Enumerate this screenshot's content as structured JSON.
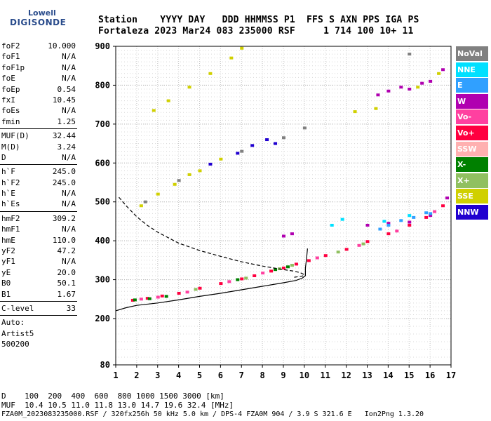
{
  "logo": {
    "line1": "Lowell",
    "line2": "DIGISONDE"
  },
  "header": {
    "line1": "Station    YYYY DAY   DDD HHMMSS P1  FFS S AXN PPS IGA PS",
    "line2": "Fortaleza 2023 Mar24 083 235000 RSF     1 714 100 10+ 11"
  },
  "sidebar": {
    "group1": [
      {
        "label": "foF2",
        "value": "10.000"
      },
      {
        "label": "foF1",
        "value": "N/A"
      },
      {
        "label": "foF1p",
        "value": "N/A"
      },
      {
        "label": "foE",
        "value": "N/A"
      },
      {
        "label": "foEp",
        "value": "0.54"
      },
      {
        "label": "fxI",
        "value": "10.45"
      },
      {
        "label": "foEs",
        "value": "N/A"
      },
      {
        "label": "fmin",
        "value": "1.25"
      }
    ],
    "group2": [
      {
        "label": "MUF(D)",
        "value": "32.44"
      },
      {
        "label": "M(D)",
        "value": "3.24"
      },
      {
        "label": "D",
        "value": "N/A"
      }
    ],
    "group3": [
      {
        "label": "h`F",
        "value": "245.0"
      },
      {
        "label": "h`F2",
        "value": "245.0"
      },
      {
        "label": "h`E",
        "value": "N/A"
      },
      {
        "label": "h`Es",
        "value": "N/A"
      }
    ],
    "group4": [
      {
        "label": "hmF2",
        "value": "309.2"
      },
      {
        "label": "hmF1",
        "value": "N/A"
      },
      {
        "label": "hmE",
        "value": "110.0"
      },
      {
        "label": "yF2",
        "value": "47.2"
      },
      {
        "label": "yF1",
        "value": "N/A"
      },
      {
        "label": "yE",
        "value": "20.0"
      },
      {
        "label": "B0",
        "value": "50.1"
      },
      {
        "label": "B1",
        "value": "1.67"
      }
    ],
    "group5": [
      {
        "label": "C-level",
        "value": "33"
      }
    ],
    "auto_lines": [
      "Auto:",
      "Artist5",
      "500200"
    ]
  },
  "legend": [
    {
      "label": "NoVal",
      "color": "#808080"
    },
    {
      "label": "NNE",
      "color": "#00e0ff"
    },
    {
      "label": "E",
      "color": "#30a0ff"
    },
    {
      "label": "W",
      "color": "#b000b0"
    },
    {
      "label": "Vo-",
      "color": "#ff40a0"
    },
    {
      "label": "Vo+",
      "color": "#ff0040"
    },
    {
      "label": "SSW",
      "color": "#ffb0b0"
    },
    {
      "label": "X-",
      "color": "#008000"
    },
    {
      "label": "X+",
      "color": "#90c060"
    },
    {
      "label": "SSE",
      "color": "#d0d000"
    },
    {
      "label": "NNW",
      "color": "#2000d0"
    }
  ],
  "chart_data": {
    "type": "scatter",
    "xlim": [
      1,
      17
    ],
    "ylim": [
      80,
      900
    ],
    "x_ticks": [
      1,
      2,
      3,
      4,
      5,
      6,
      7,
      8,
      9,
      10,
      11,
      12,
      13,
      14,
      15,
      16,
      17
    ],
    "y_ticks": [
      80,
      200,
      300,
      400,
      500,
      600,
      700,
      800,
      900
    ],
    "grid": true,
    "legend_placement": "right",
    "series": [
      {
        "color_key": "Vo+",
        "points": [
          [
            1.8,
            247
          ],
          [
            2.5,
            252
          ],
          [
            3.2,
            258
          ],
          [
            4,
            265
          ],
          [
            5,
            278
          ],
          [
            6,
            290
          ],
          [
            7,
            302
          ],
          [
            7.6,
            310
          ],
          [
            8.4,
            322
          ],
          [
            9,
            330
          ],
          [
            9.6,
            340
          ],
          [
            10.2,
            349
          ],
          [
            11,
            362
          ],
          [
            12,
            378
          ],
          [
            13,
            398
          ],
          [
            14,
            418
          ],
          [
            15,
            440
          ],
          [
            15.8,
            460
          ],
          [
            16.6,
            490
          ]
        ]
      },
      {
        "color_key": "Vo-",
        "points": [
          [
            2.2,
            250
          ],
          [
            3,
            255
          ],
          [
            4.4,
            268
          ],
          [
            6.4,
            295
          ],
          [
            8,
            317
          ],
          [
            10.6,
            356
          ],
          [
            12.6,
            388
          ],
          [
            14.4,
            425
          ],
          [
            16.2,
            475
          ]
        ]
      },
      {
        "color_key": "X-",
        "points": [
          [
            1.9,
            248
          ],
          [
            2.6,
            251
          ],
          [
            3.4,
            257
          ],
          [
            6.8,
            300
          ],
          [
            8.6,
            326
          ],
          [
            9.2,
            333
          ]
        ]
      },
      {
        "color_key": "X+",
        "points": [
          [
            4.8,
            275
          ],
          [
            7.2,
            304
          ],
          [
            8.8,
            328
          ],
          [
            9.4,
            337
          ],
          [
            11.6,
            371
          ],
          [
            12.8,
            392
          ]
        ]
      },
      {
        "color_key": "W",
        "points": [
          [
            9,
            412
          ],
          [
            9.4,
            418
          ],
          [
            13,
            440
          ],
          [
            14,
            445
          ],
          [
            15,
            448
          ],
          [
            16,
            465
          ],
          [
            16.8,
            510
          ],
          [
            13.5,
            775
          ],
          [
            14,
            785
          ],
          [
            14.6,
            795
          ],
          [
            15,
            790
          ],
          [
            15.6,
            805
          ],
          [
            16,
            810
          ],
          [
            16.6,
            840
          ]
        ]
      },
      {
        "color_key": "E",
        "points": [
          [
            13.6,
            430
          ],
          [
            14,
            440
          ],
          [
            14.6,
            452
          ],
          [
            15.2,
            460
          ],
          [
            15.8,
            472
          ],
          [
            16,
            470
          ]
        ]
      },
      {
        "color_key": "NNE",
        "points": [
          [
            11.3,
            440
          ],
          [
            11.8,
            455
          ],
          [
            13.8,
            450
          ],
          [
            15,
            465
          ]
        ]
      },
      {
        "color_key": "SSE",
        "points": [
          [
            2.2,
            490
          ],
          [
            3,
            520
          ],
          [
            3.8,
            545
          ],
          [
            4.5,
            570
          ],
          [
            5,
            580
          ],
          [
            6,
            610
          ],
          [
            2.8,
            735
          ],
          [
            3.5,
            760
          ],
          [
            4.5,
            795
          ],
          [
            5.5,
            830
          ],
          [
            6.5,
            870
          ],
          [
            7,
            895
          ],
          [
            12.4,
            732
          ],
          [
            13.4,
            740
          ],
          [
            15.4,
            795
          ],
          [
            16.4,
            830
          ]
        ]
      },
      {
        "color_key": "NNW",
        "points": [
          [
            5.5,
            597
          ],
          [
            6.8,
            625
          ],
          [
            7.5,
            645
          ],
          [
            8.2,
            660
          ],
          [
            8.6,
            650
          ]
        ]
      },
      {
        "color_key": "NoVal",
        "points": [
          [
            2.4,
            500
          ],
          [
            4,
            555
          ],
          [
            7,
            630
          ],
          [
            9,
            665
          ],
          [
            10,
            690
          ],
          [
            15,
            880
          ]
        ]
      }
    ],
    "curves": [
      {
        "style": "dashed",
        "points": [
          [
            1.15,
            512
          ],
          [
            1.5,
            490
          ],
          [
            2,
            462
          ],
          [
            2.5,
            440
          ],
          [
            3,
            422
          ],
          [
            3.5,
            408
          ],
          [
            4,
            394
          ],
          [
            5,
            375
          ],
          [
            6,
            360
          ],
          [
            7,
            346
          ],
          [
            8,
            335
          ],
          [
            9,
            326
          ],
          [
            9.5,
            322
          ],
          [
            9.8,
            318
          ],
          [
            10,
            313
          ],
          [
            9.9,
            309
          ],
          [
            9.5,
            306
          ]
        ]
      },
      {
        "style": "solid",
        "points": [
          [
            1,
            220
          ],
          [
            1.5,
            228
          ],
          [
            2,
            234
          ],
          [
            3,
            240
          ],
          [
            4,
            248
          ],
          [
            5,
            257
          ],
          [
            6,
            265
          ],
          [
            7,
            274
          ],
          [
            8,
            283
          ],
          [
            9,
            292
          ],
          [
            9.6,
            298
          ],
          [
            9.9,
            304
          ],
          [
            10.05,
            310
          ],
          [
            10.05,
            330
          ],
          [
            10.1,
            352
          ],
          [
            10.15,
            380
          ]
        ]
      }
    ]
  },
  "axis": {
    "bottom_labels": [
      "1",
      "2",
      "3",
      "4",
      "5",
      "6",
      "7",
      "8",
      "9",
      "10",
      "11",
      "12",
      "13",
      "14",
      "15",
      "16",
      "17"
    ]
  },
  "footer": {
    "line1": "D    100  200  400  600  800 1000 1500 3000 [km]",
    "line2": "MUF  10.4 10.5 11.0 11.8 13.0 14.7 19.6 32.4 [MHz]",
    "line3": "FZA0M_2023083235000.RSF / 320fx256h 50 kHz 5.0 km / DPS-4 FZA0M 904 / 3.9 S 321.6 E   Ion2Png 1.3.20"
  }
}
